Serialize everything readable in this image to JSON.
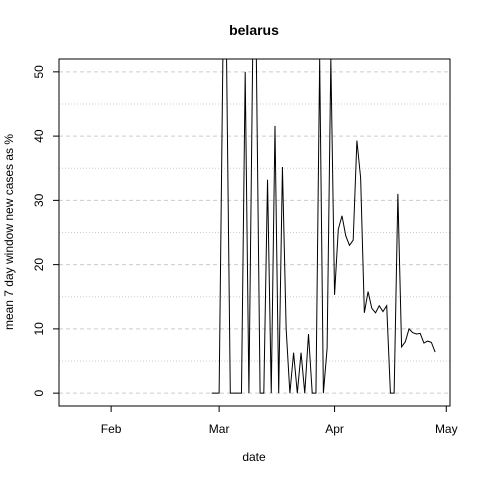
{
  "chart_data": {
    "type": "line",
    "title": "belarus",
    "xlabel": "date",
    "ylabel": "mean  7  day window new cases as %",
    "x_ticks": [
      "Feb",
      "Mar",
      "Apr",
      "May"
    ],
    "y_ticks": [
      0,
      10,
      20,
      30,
      40,
      50
    ],
    "xlim": [
      "2020-01-18",
      "2020-05-02"
    ],
    "ylim": [
      -2,
      52
    ],
    "grid": {
      "major": "dashed",
      "minor": "dotted"
    },
    "line_color": "#000000",
    "grid_color": "#cccccc",
    "series": [
      {
        "x": [
          "2020-02-28",
          "2020-03-01",
          "2020-03-02",
          "2020-03-03",
          "2020-03-04",
          "2020-03-05",
          "2020-03-06",
          "2020-03-07",
          "2020-03-08",
          "2020-03-09",
          "2020-03-10",
          "2020-03-11",
          "2020-03-12",
          "2020-03-13",
          "2020-03-14",
          "2020-03-15",
          "2020-03-16",
          "2020-03-17",
          "2020-03-18",
          "2020-03-19",
          "2020-03-20",
          "2020-03-21",
          "2020-03-22",
          "2020-03-23",
          "2020-03-24",
          "2020-03-25",
          "2020-03-26",
          "2020-03-27",
          "2020-03-28",
          "2020-03-29",
          "2020-03-30",
          "2020-03-31",
          "2020-04-01",
          "2020-04-02",
          "2020-04-03",
          "2020-04-04",
          "2020-04-05",
          "2020-04-06",
          "2020-04-07",
          "2020-04-08",
          "2020-04-09",
          "2020-04-10",
          "2020-04-11",
          "2020-04-12",
          "2020-04-13",
          "2020-04-14",
          "2020-04-15",
          "2020-04-16",
          "2020-04-17",
          "2020-04-18",
          "2020-04-19",
          "2020-04-20",
          "2020-04-21",
          "2020-04-22",
          "2020-04-23",
          "2020-04-24",
          "2020-04-25",
          "2020-04-26",
          "2020-04-27",
          "2020-04-28",
          "2020-04-29",
          "2020-04-30"
        ],
        "y": [
          0,
          0,
          52,
          52,
          0,
          0,
          0,
          0,
          50,
          0,
          52,
          52,
          0,
          0,
          33.2,
          0,
          41.6,
          0,
          35.2,
          10,
          0,
          6.3,
          0,
          6.3,
          0,
          9.2,
          0,
          0,
          52,
          0,
          7,
          52,
          15.3,
          25.5,
          27.6,
          24.5,
          23,
          23.8,
          39.3,
          33.5,
          12.5,
          15.8,
          13.2,
          12.5,
          13.6,
          12.7,
          13.6,
          0,
          0,
          31,
          7.2,
          8,
          10,
          9.4,
          9.2,
          9.3,
          7.8,
          8.1,
          7.9,
          6.4,
          null,
          null
        ]
      }
    ]
  }
}
